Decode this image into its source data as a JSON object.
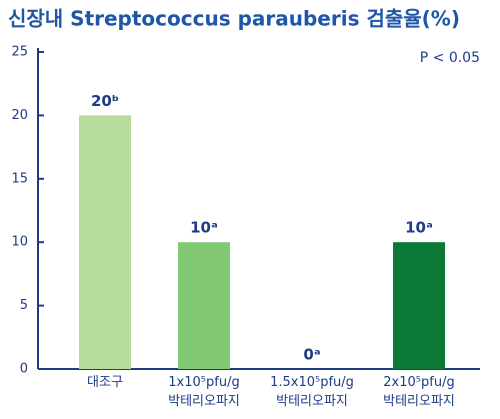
{
  "chart_data": {
    "type": "bar",
    "title": "신장내 Streptococcus parauberis 검출율(%)",
    "annotation": "P < 0.05",
    "categories": [
      "대조구",
      "1x10⁵pfu/g\n박테리오파지",
      "1.5x10⁵pfu/g\n박테리오파지",
      "2x10⁵pfu/g\n박테리오파지"
    ],
    "values": [
      20,
      10,
      0,
      10
    ],
    "value_labels": [
      "20ᵇ",
      "10ᵃ",
      "0ᵃ",
      "10ᵃ"
    ],
    "colors": [
      "#b6dc9b",
      "#80c871",
      "#5aa84a",
      "#0c7a36"
    ],
    "ylim": [
      0,
      25
    ],
    "yticks": [
      0,
      5,
      10,
      15,
      20,
      25
    ],
    "grid": false
  }
}
